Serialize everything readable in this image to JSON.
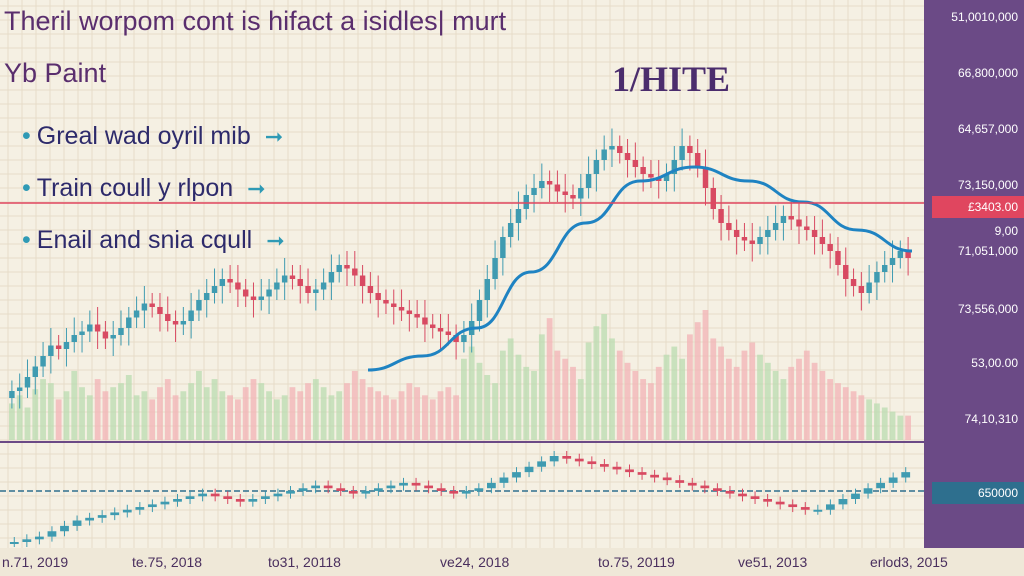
{
  "header": {
    "title": "Theril worpom cont is hifact a isidles| murt",
    "subtitle": "Yb Paint",
    "marker_label": "1/HITE"
  },
  "bullets": [
    {
      "text": "Greal wad oyril mib"
    },
    {
      "text": "Train coull y rlpon"
    },
    {
      "text": "Enail and snia cqull"
    }
  ],
  "price_axis": {
    "ticks": [
      "51,0010,000",
      "66,800,000",
      "64,657,000",
      "73,150,000",
      "9,00",
      "71,051,000",
      "73,556,000",
      "53,00.00",
      "74,10,310"
    ],
    "highlight_label": "£3403.00",
    "badge_label": "650000"
  },
  "colors": {
    "up": "#3f9bb1",
    "down": "#d84a62",
    "ma": "#1f83c2",
    "panel": "#6b4a86",
    "highlight": "#e0465f",
    "badge": "#2e6f8e"
  },
  "date_axis": [
    "n.71, 2019",
    "te.75, 2018",
    "to31, 20118",
    "ve24, 2018",
    "to.75, 20119",
    "ve51, 2013",
    "erlod3, 2015"
  ],
  "chart_data": {
    "type": "candlestick",
    "title": "Theril worpom cont is hifact a isidles| murt",
    "ylabels": [
      "51,0010,000",
      "66,800,000",
      "64,657,000",
      "73,150,000",
      "9,00",
      "71,051,000",
      "73,556,000",
      "53,00.00",
      "74,10,310"
    ],
    "xlabels": [
      "n.71, 2019",
      "te.75, 2018",
      "to31, 20118",
      "ve24, 2018",
      "to.75, 20119",
      "ve51, 2013",
      "erlod3, 2015"
    ],
    "y_domain": [
      0,
      100
    ],
    "close": [
      14,
      15,
      18,
      21,
      24,
      27,
      26,
      28,
      30,
      31,
      33,
      31,
      29,
      30,
      32,
      35,
      37,
      39,
      38,
      36,
      34,
      33,
      34,
      37,
      40,
      42,
      44,
      46,
      45,
      43,
      41,
      40,
      41,
      43,
      45,
      47,
      46,
      44,
      42,
      43,
      45,
      48,
      50,
      49,
      47,
      44,
      42,
      40,
      39,
      38,
      37,
      36,
      35,
      33,
      32,
      31,
      30,
      28,
      30,
      34,
      40,
      46,
      52,
      58,
      62,
      66,
      70,
      72,
      74,
      73,
      71,
      70,
      69,
      72,
      76,
      80,
      83,
      84,
      82,
      80,
      78,
      76,
      75,
      74,
      76,
      80,
      84,
      82,
      78,
      72,
      66,
      62,
      60,
      58,
      57,
      56,
      58,
      60,
      62,
      64,
      63,
      61,
      60,
      58,
      56,
      54,
      50,
      46,
      44,
      42,
      45,
      48,
      50,
      52,
      54,
      52
    ],
    "volume": [
      18,
      22,
      16,
      25,
      30,
      28,
      20,
      24,
      34,
      26,
      22,
      30,
      24,
      26,
      28,
      32,
      22,
      24,
      20,
      26,
      30,
      22,
      24,
      28,
      34,
      26,
      30,
      24,
      22,
      20,
      26,
      30,
      28,
      24,
      20,
      22,
      26,
      24,
      28,
      30,
      26,
      22,
      24,
      28,
      34,
      30,
      26,
      24,
      22,
      20,
      24,
      28,
      26,
      22,
      20,
      24,
      26,
      22,
      40,
      46,
      38,
      32,
      28,
      44,
      50,
      42,
      36,
      34,
      52,
      60,
      44,
      40,
      36,
      30,
      48,
      56,
      62,
      50,
      44,
      38,
      34,
      30,
      28,
      36,
      42,
      46,
      40,
      52,
      58,
      64,
      50,
      46,
      40,
      36,
      44,
      48,
      42,
      38,
      34,
      30,
      36,
      40,
      44,
      38,
      34,
      30,
      28,
      26,
      24,
      22,
      20,
      18,
      16,
      14,
      12,
      12
    ],
    "moving_average": [
      [
        0,
        10
      ],
      [
        0.1,
        14
      ],
      [
        0.2,
        22
      ],
      [
        0.3,
        38
      ],
      [
        0.4,
        52
      ],
      [
        0.5,
        64
      ],
      [
        0.6,
        68
      ],
      [
        0.7,
        64
      ],
      [
        0.8,
        58
      ],
      [
        0.9,
        50
      ],
      [
        1,
        44
      ]
    ],
    "lower_series": [
      16,
      17,
      18,
      20,
      22,
      24,
      25,
      26,
      27,
      28,
      29,
      30,
      31,
      32,
      33,
      34,
      33,
      32,
      31,
      32,
      33,
      34,
      35,
      36,
      37,
      36,
      35,
      34,
      35,
      36,
      37,
      38,
      37,
      36,
      35,
      34,
      35,
      36,
      38,
      40,
      42,
      44,
      46,
      48,
      47,
      46,
      45,
      44,
      43,
      42,
      41,
      40,
      39,
      38,
      37,
      36,
      35,
      34,
      33,
      32,
      31,
      30,
      29,
      28,
      28,
      30,
      32,
      34,
      36,
      38,
      40,
      42
    ],
    "grid": true
  }
}
